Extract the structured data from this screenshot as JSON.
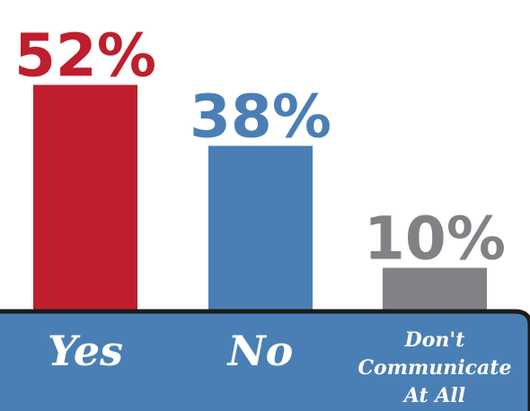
{
  "chart_data": {
    "type": "bar",
    "categories": [
      "Yes",
      "No",
      "Don't Communicate At All"
    ],
    "category_lines": [
      [
        "Yes"
      ],
      [
        "No"
      ],
      [
        "Don't",
        "Communicate",
        "At All"
      ]
    ],
    "values": [
      52,
      38,
      10
    ],
    "value_labels": [
      "52%",
      "38%",
      "10%"
    ],
    "colors": [
      "#be1e2d",
      "#4a7fb5",
      "#808285"
    ],
    "ylim": [
      0,
      55
    ],
    "grid": false,
    "legend": "none",
    "title": "",
    "xlabel": "",
    "ylabel": ""
  },
  "colors": {
    "band": "#4a7fb5",
    "band_border": "#1b1b1b",
    "background": "#ffffff"
  }
}
